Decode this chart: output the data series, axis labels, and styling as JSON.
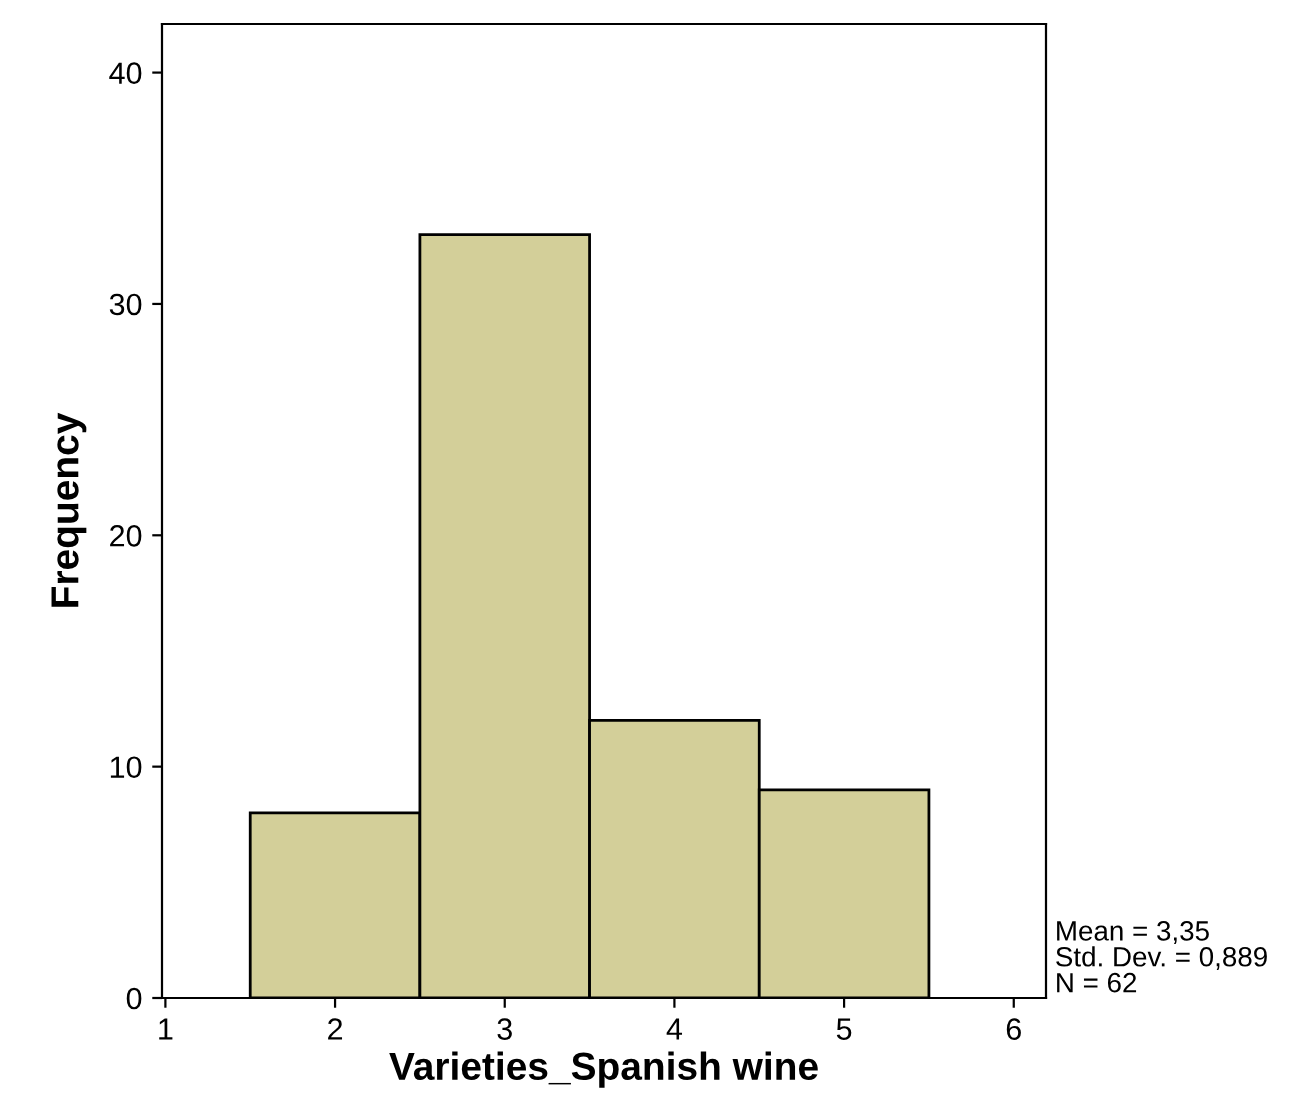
{
  "chart_data": {
    "type": "histogram",
    "xlabel": "Varieties_Spanish wine",
    "ylabel": "Frequency",
    "bins": [
      1.5,
      2.5,
      3.5,
      4.5,
      5.5
    ],
    "values": [
      8,
      33,
      12,
      9
    ],
    "color": "#d3cf99",
    "xlim": [
      0.98,
      6.19
    ],
    "xticks": [
      1,
      2,
      3,
      4,
      5,
      6
    ],
    "ylim": [
      0,
      42.1
    ],
    "yticks": [
      0,
      10,
      20,
      30,
      40
    ],
    "grid": false,
    "annotations": [
      "Mean = 3,35\nStd. Dev. = 0,889\nN = 62"
    ]
  }
}
